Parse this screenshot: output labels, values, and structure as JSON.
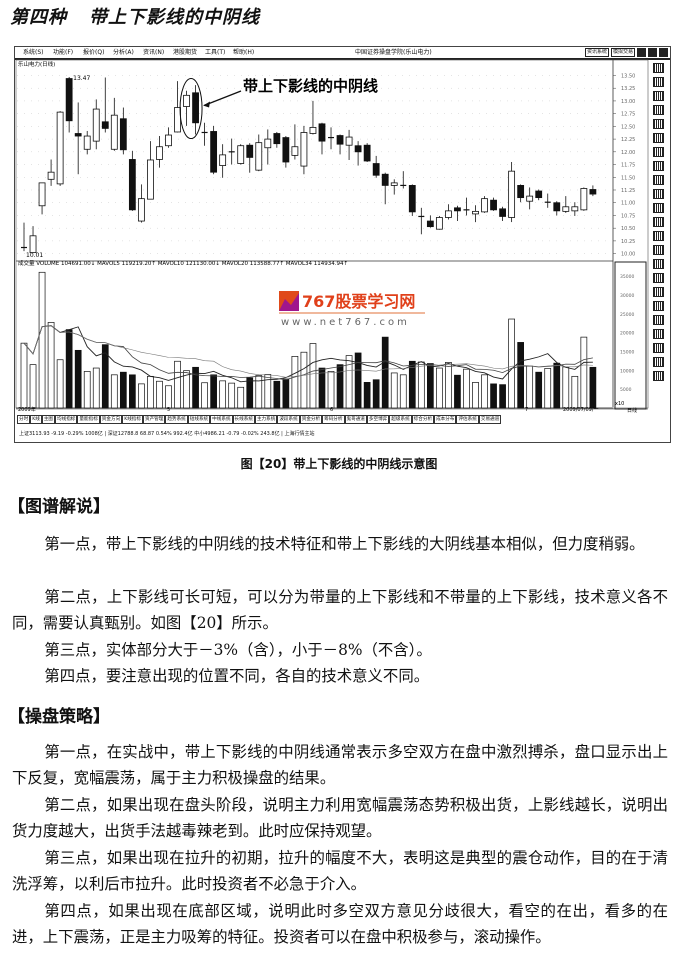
{
  "page": {
    "title_prefix": "第四种",
    "title": "带上下影线的中阴线"
  },
  "window": {
    "menu": [
      "系统(S)",
      "功能(F)",
      "报价(Q)",
      "分析(A)",
      "资讯(N)",
      "港股期货",
      "工具(T)",
      "帮助(H)"
    ],
    "title": "中国证券操盘学院(乐山电力)",
    "buttons": [
      "资讯系统",
      "模拟交易"
    ],
    "chart_label": "乐山电力(日线)",
    "volume_legend": "成交量 VOLUME 104691.00↓ MAVOL5 119219.20↑ MAVOL10 121130.00↓ MAVOL20 113588.77↑ MAVOL34 114934.94↑",
    "annotation": "带上下影线的中阴线",
    "high_label": "13.47",
    "low_label": "10.01",
    "date_labels": [
      "2009年",
      "5",
      "6",
      "7",
      "2009/07/09/一"
    ],
    "volume_unit": "x10",
    "period_label": "日线",
    "tabs": [
      "分时",
      "K线",
      "主图",
      "均线指标",
      "量能指标",
      "资金方向",
      "K线指标",
      "资产管理",
      "趋势系统",
      "短线系统",
      "中线系统",
      "长线系统",
      "主力系统",
      "波段系统",
      "资金分析",
      "筹码分析",
      "鬼哥通道",
      "多空博弈",
      "超级系统",
      "综合分析",
      "成本分布",
      "评估系统",
      "交易通道"
    ],
    "status": "上证3113.93  -9.19  -0.29%  1008亿 | 深证12788.8  68.87  0.54%  992.4亿 中小4986.21  -0.79  -0.02%  243.8亿 | 上海行情主站"
  },
  "logo": {
    "name": "767股票学习网",
    "url_text": "www.net767.com",
    "color": "#e0401a",
    "icon_colors": [
      "#e04a1a",
      "#a0168c"
    ]
  },
  "chart_data": {
    "type": "candlestick",
    "price_axis_ticks": [
      "13.50",
      "13.25",
      "13.00",
      "12.75",
      "12.50",
      "12.25",
      "12.00",
      "11.75",
      "11.50",
      "11.25",
      "11.00",
      "10.75",
      "10.50",
      "10.25",
      "10.00"
    ],
    "volume_axis_ticks": [
      "35000",
      "30000",
      "25000",
      "20000",
      "15000",
      "10000",
      "5000"
    ],
    "highlighted_candle": 20,
    "candles_ohlc": [
      [
        10.12,
        10.61,
        10.05,
        10.12
      ],
      [
        10.02,
        10.54,
        10.01,
        10.35
      ],
      [
        10.94,
        11.39,
        10.77,
        11.39
      ],
      [
        11.46,
        11.85,
        11.33,
        11.6
      ],
      [
        11.37,
        12.8,
        11.33,
        12.78
      ],
      [
        13.44,
        13.47,
        12.38,
        12.61
      ],
      [
        12.36,
        12.97,
        11.56,
        12.31
      ],
      [
        12.05,
        12.41,
        11.95,
        12.31
      ],
      [
        12.21,
        13.03,
        12.05,
        12.84
      ],
      [
        12.59,
        13.46,
        12.38,
        12.46
      ],
      [
        12.05,
        13.06,
        12.02,
        12.72
      ],
      [
        12.65,
        12.87,
        11.95,
        12.04
      ],
      [
        11.85,
        12.02,
        10.84,
        10.86
      ],
      [
        10.64,
        11.36,
        10.61,
        11.08
      ],
      [
        11.07,
        12.21,
        11.07,
        11.84
      ],
      [
        11.85,
        12.31,
        11.69,
        12.1
      ],
      [
        12.12,
        12.48,
        12.08,
        12.33
      ],
      [
        12.39,
        13.39,
        12.38,
        12.87
      ],
      [
        12.89,
        13.2,
        12.51,
        13.11
      ],
      [
        13.16,
        13.31,
        12.34,
        12.57
      ],
      [
        12.38,
        12.57,
        12.12,
        12.38
      ],
      [
        12.4,
        12.51,
        11.56,
        11.6
      ],
      [
        11.73,
        12.15,
        11.49,
        11.94
      ],
      [
        12.0,
        12.26,
        11.75,
        12.0
      ],
      [
        11.77,
        12.15,
        11.75,
        12.12
      ],
      [
        12.13,
        12.17,
        11.59,
        11.89
      ],
      [
        11.64,
        12.34,
        11.62,
        12.18
      ],
      [
        12.08,
        12.44,
        11.75,
        12.25
      ],
      [
        12.36,
        12.39,
        12.08,
        12.16
      ],
      [
        12.28,
        12.31,
        11.69,
        11.8
      ],
      [
        11.93,
        12.54,
        11.85,
        12.1
      ],
      [
        11.72,
        12.51,
        11.56,
        12.38
      ],
      [
        12.36,
        13.0,
        12.34,
        12.48
      ],
      [
        12.55,
        12.57,
        11.95,
        12.21
      ],
      [
        12.28,
        12.48,
        12.05,
        12.28
      ],
      [
        12.32,
        12.34,
        11.95,
        12.15
      ],
      [
        12.13,
        12.43,
        11.84,
        12.29
      ],
      [
        12.12,
        12.21,
        11.73,
        12.0
      ],
      [
        12.13,
        12.17,
        11.8,
        11.82
      ],
      [
        11.77,
        11.92,
        11.49,
        11.54
      ],
      [
        11.56,
        11.59,
        10.97,
        11.34
      ],
      [
        11.34,
        11.46,
        11.16,
        11.39
      ],
      [
        11.34,
        11.62,
        11.28,
        11.34
      ],
      [
        11.34,
        11.36,
        10.74,
        10.82
      ],
      [
        10.73,
        10.9,
        10.38,
        10.73
      ],
      [
        10.64,
        10.75,
        10.51,
        10.53
      ],
      [
        10.48,
        10.74,
        10.47,
        10.71
      ],
      [
        10.71,
        10.97,
        10.67,
        10.84
      ],
      [
        10.9,
        10.94,
        10.64,
        10.84
      ],
      [
        10.86,
        11.1,
        10.75,
        10.86
      ],
      [
        10.78,
        10.95,
        10.62,
        10.83
      ],
      [
        10.82,
        11.13,
        10.8,
        11.08
      ],
      [
        11.05,
        11.1,
        10.84,
        10.86
      ],
      [
        10.88,
        10.92,
        10.64,
        10.73
      ],
      [
        10.71,
        11.8,
        10.62,
        11.62
      ],
      [
        11.34,
        11.36,
        11.01,
        11.1
      ],
      [
        11.03,
        11.3,
        10.87,
        11.13
      ],
      [
        11.23,
        11.26,
        11.05,
        11.1
      ],
      [
        11.01,
        11.18,
        10.9,
        11.01
      ],
      [
        11.0,
        11.03,
        10.75,
        10.84
      ],
      [
        10.83,
        11.13,
        10.8,
        10.92
      ],
      [
        10.84,
        11.01,
        10.74,
        10.92
      ],
      [
        10.86,
        11.3,
        10.84,
        11.28
      ],
      [
        11.26,
        11.34,
        11.13,
        11.17
      ]
    ],
    "volume": [
      17200,
      11500,
      36000,
      22700,
      12800,
      20800,
      15300,
      9700,
      10600,
      16800,
      8800,
      9500,
      8800,
      6400,
      8400,
      7100,
      5900,
      12400,
      9900,
      10800,
      6700,
      8800,
      7200,
      6600,
      5500,
      8000,
      8600,
      8900,
      7100,
      7700,
      13700,
      14800,
      17100,
      10600,
      9700,
      11500,
      13900,
      14600,
      6800,
      7500,
      18800,
      9300,
      8800,
      12400,
      12200,
      11800,
      10600,
      12100,
      8700,
      10300,
      6800,
      8800,
      6400,
      6200,
      23600,
      17400,
      11100,
      9500,
      10500,
      11900,
      10900,
      8400,
      18800,
      10800
    ],
    "price_range": [
      10.0,
      13.6
    ],
    "volume_range": [
      0,
      37000
    ]
  },
  "caption": "图【20】带上下影线的中阴线示意图",
  "section1": {
    "heading": "【图谱解说】",
    "paragraphs": [
      "第一点，带上下影线的中阴线的技术特征和带上下影线的大阴线基本相似，但力度稍弱。",
      "第二点，上下影线可长可短，可以分为带量的上下影线和不带量的上下影线，技术意义各不同，需要认真甄别。如图【20】所示。",
      "第三点，实体部分大于－3%（含），小于－8%（不含）。",
      "第四点，要注意出现的位置不同，各自的技术意义不同。"
    ]
  },
  "section2": {
    "heading": "【操盘策略】",
    "paragraphs": [
      "第一点，在实战中，带上下影线的中阴线通常表示多空双方在盘中激烈搏杀，盘口显示出上下反复，宽幅震荡，属于主力积极操盘的结果。",
      "第二点，如果出现在盘头阶段，说明主力利用宽幅震荡态势积极出货，上影线越长，说明出货力度越大，出货手法越毒辣老到。此时应保持观望。",
      "第三点，如果出现在拉升的初期，拉升的幅度不大，表明这是典型的震仓动作，目的在于清洗浮筹，以利后市拉升。此时投资者不必急于介入。",
      "第四点，如果出现在底部区域，说明此时多空双方意见分歧很大，看空的在出，看多的在进，上下震荡，正是主力吸筹的特征。投资者可以在盘中积极参与，滚动操作。"
    ]
  }
}
